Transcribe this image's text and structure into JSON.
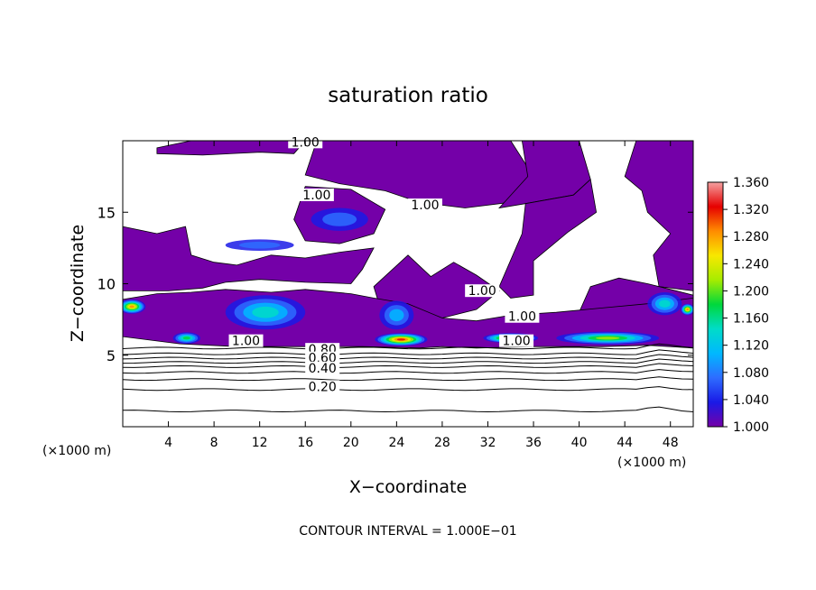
{
  "chart_data": {
    "type": "heatmap",
    "title": "saturation ratio",
    "xlabel": "X−coordinate",
    "ylabel": "Z−coordinate",
    "x_unit_left": "(×1000 m)",
    "x_unit_right": "(×1000 m)",
    "footer": "CONTOUR INTERVAL = 1.000E−01",
    "xlim": [
      0,
      50
    ],
    "ylim": [
      0,
      20
    ],
    "x_ticks": [
      4,
      8,
      12,
      16,
      20,
      24,
      28,
      32,
      36,
      40,
      44,
      48
    ],
    "x_tick_labels": [
      "4",
      "8",
      "12",
      "16",
      "20",
      "24",
      "28",
      "32",
      "36",
      "40",
      "44",
      "48"
    ],
    "y_ticks": [
      5,
      10,
      15
    ],
    "y_tick_labels": [
      "5",
      "10",
      "15"
    ],
    "colorbar": {
      "min": 1.0,
      "max": 1.36,
      "ticks": [
        1.0,
        1.04,
        1.08,
        1.12,
        1.16,
        1.2,
        1.24,
        1.28,
        1.32,
        1.36
      ],
      "tick_labels": [
        "1.000",
        "1.040",
        "1.080",
        "1.120",
        "1.160",
        "1.200",
        "1.240",
        "1.280",
        "1.320",
        "1.360"
      ],
      "colors": [
        "#7400a8",
        "#1a1ae6",
        "#2e6cff",
        "#00b8ff",
        "#00dcc8",
        "#00d83c",
        "#a6ec00",
        "#f8e800",
        "#ff8c00",
        "#e60000",
        "#f4a0a0"
      ]
    },
    "contour_labels": [
      {
        "text": "1.00",
        "x": 16.0,
        "y": 19.6
      },
      {
        "text": "1.00",
        "x": 17.0,
        "y": 15.9
      },
      {
        "text": "1.00",
        "x": 26.5,
        "y": 15.2
      },
      {
        "text": "1.00",
        "x": 31.5,
        "y": 9.2
      },
      {
        "text": "1.00",
        "x": 35.0,
        "y": 7.4
      },
      {
        "text": "1.00",
        "x": 10.8,
        "y": 5.7
      },
      {
        "text": "1.00",
        "x": 34.5,
        "y": 5.7
      },
      {
        "text": "0.80",
        "x": 17.5,
        "y": 5.1
      },
      {
        "text": "0.60",
        "x": 17.5,
        "y": 4.5
      },
      {
        "text": "0.40",
        "x": 17.5,
        "y": 3.8
      },
      {
        "text": "0.20",
        "x": 17.5,
        "y": 2.5
      }
    ],
    "contour_levels_below": [
      {
        "level": 0.9,
        "z": 5.5
      },
      {
        "level": 0.8,
        "z": 5.1
      },
      {
        "level": 0.7,
        "z": 4.8
      },
      {
        "level": 0.6,
        "z": 4.5
      },
      {
        "level": 0.5,
        "z": 4.2
      },
      {
        "level": 0.4,
        "z": 3.8
      },
      {
        "level": 0.3,
        "z": 3.3
      },
      {
        "level": 0.2,
        "z": 2.6
      },
      {
        "level": 0.1,
        "z": 1.1
      }
    ],
    "supersaturated_regions": [
      {
        "name": "upper-left",
        "polygon": [
          [
            0,
            9.5
          ],
          [
            0,
            14.0
          ],
          [
            3,
            13.5
          ],
          [
            5.5,
            14
          ],
          [
            6,
            12
          ],
          [
            8,
            11.5
          ],
          [
            10,
            11.3
          ],
          [
            13,
            12.0
          ],
          [
            16,
            11.8
          ],
          [
            19,
            12.2
          ],
          [
            22,
            12.5
          ],
          [
            21,
            11
          ],
          [
            20,
            10
          ],
          [
            16,
            10.1
          ],
          [
            12,
            10.3
          ],
          [
            9,
            10.1
          ],
          [
            7,
            9.7
          ],
          [
            4,
            9.5
          ]
        ]
      },
      {
        "name": "top-left-strip",
        "polygon": [
          [
            3,
            19.5
          ],
          [
            6,
            20
          ],
          [
            16,
            20
          ],
          [
            15,
            19.1
          ],
          [
            12,
            19.2
          ],
          [
            7,
            19.0
          ],
          [
            3,
            19.1
          ]
        ]
      },
      {
        "name": "upper-middle-left",
        "polygon": [
          [
            15,
            14.5
          ],
          [
            16,
            16.8
          ],
          [
            20,
            16.6
          ],
          [
            23,
            15.2
          ],
          [
            22,
            13.5
          ],
          [
            19,
            12.8
          ],
          [
            16,
            13.0
          ]
        ]
      },
      {
        "name": "top-center",
        "polygon": [
          [
            16,
            17.6
          ],
          [
            17,
            20
          ],
          [
            34,
            20
          ],
          [
            36,
            17.5
          ],
          [
            34,
            15.7
          ],
          [
            30,
            15.3
          ],
          [
            26,
            15.7
          ],
          [
            23,
            16.5
          ],
          [
            19,
            17.0
          ]
        ]
      },
      {
        "name": "upper-right",
        "polygon": [
          [
            33,
            15.3
          ],
          [
            35.5,
            17.5
          ],
          [
            35,
            20
          ],
          [
            40,
            20
          ],
          [
            41,
            17.3
          ],
          [
            39.5,
            16.2
          ],
          [
            35.3,
            15.6
          ]
        ]
      },
      {
        "name": "right-tall",
        "polygon": [
          [
            33,
            9.8
          ],
          [
            35,
            13.5
          ],
          [
            35.3,
            15.6
          ],
          [
            39.5,
            16.2
          ],
          [
            41,
            17.3
          ],
          [
            41.5,
            15
          ],
          [
            39,
            13.6
          ],
          [
            36,
            11.6
          ],
          [
            36,
            9.2
          ],
          [
            34,
            9.0
          ]
        ]
      },
      {
        "name": "center-lower",
        "polygon": [
          [
            22,
            9.8
          ],
          [
            25,
            12
          ],
          [
            27,
            10.5
          ],
          [
            29,
            11.5
          ],
          [
            31,
            10.6
          ],
          [
            33,
            9.5
          ],
          [
            31,
            8.2
          ],
          [
            28,
            7.6
          ],
          [
            25,
            8.5
          ],
          [
            22.5,
            8.5
          ]
        ]
      },
      {
        "name": "far-right-upper",
        "polygon": [
          [
            44,
            17.5
          ],
          [
            45,
            20
          ],
          [
            50,
            20
          ],
          [
            50,
            9.5
          ],
          [
            47,
            9.8
          ],
          [
            46.5,
            12
          ],
          [
            48,
            13.5
          ],
          [
            46,
            15
          ],
          [
            45.5,
            16.5
          ]
        ]
      },
      {
        "name": "right-low-plateau",
        "polygon": [
          [
            40,
            8.0
          ],
          [
            41,
            9.8
          ],
          [
            43.5,
            10.4
          ],
          [
            46,
            10.0
          ],
          [
            48,
            9.6
          ],
          [
            50,
            9.2
          ],
          [
            50,
            7.6
          ],
          [
            46,
            7.9
          ]
        ]
      }
    ],
    "hotspots": [
      {
        "cx": 0.8,
        "cy": 8.4,
        "rx": 1.2,
        "ry": 0.5,
        "level": 1.3
      },
      {
        "cx": 5.6,
        "cy": 6.2,
        "rx": 1.2,
        "ry": 0.4,
        "level": 1.2
      },
      {
        "cx": 12.5,
        "cy": 8.0,
        "rx": 3.5,
        "ry": 1.2,
        "level": 1.14
      },
      {
        "cx": 24.4,
        "cy": 6.1,
        "rx": 2.3,
        "ry": 0.45,
        "level": 1.34
      },
      {
        "cx": 24.0,
        "cy": 7.8,
        "rx": 1.5,
        "ry": 1.0,
        "level": 1.12
      },
      {
        "cx": 34.0,
        "cy": 6.2,
        "rx": 2.4,
        "ry": 0.35,
        "level": 1.3
      },
      {
        "cx": 42.5,
        "cy": 6.2,
        "rx": 4.5,
        "ry": 0.45,
        "level": 1.22
      },
      {
        "cx": 47.5,
        "cy": 8.6,
        "rx": 1.5,
        "ry": 0.8,
        "level": 1.16
      },
      {
        "cx": 49.5,
        "cy": 8.2,
        "rx": 0.6,
        "ry": 0.4,
        "level": 1.3
      },
      {
        "cx": 19.0,
        "cy": 14.5,
        "rx": 2.5,
        "ry": 0.8,
        "level": 1.08
      },
      {
        "cx": 12.0,
        "cy": 12.7,
        "rx": 3.0,
        "ry": 0.4,
        "level": 1.06
      }
    ]
  }
}
